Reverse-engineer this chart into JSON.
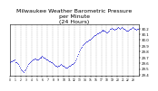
{
  "title": "Milwaukee Weather Barometric Pressure\nper Minute\n(24 Hours)",
  "title_fontsize": 4.5,
  "line_color": "#0000CC",
  "bg_color": "#ffffff",
  "grid_color": "#aaaaaa",
  "ylim": [
    29.38,
    30.28
  ],
  "xlim": [
    0,
    1440
  ],
  "yticks": [
    29.4,
    29.5,
    29.6,
    29.7,
    29.8,
    29.9,
    30.0,
    30.1,
    30.2
  ],
  "xtick_labels": [
    "0",
    "1",
    "2",
    "3",
    "4",
    "5",
    "6",
    "7",
    "8",
    "9",
    "10",
    "11",
    "12",
    "13",
    "14",
    "15",
    "16",
    "17",
    "18",
    "19",
    "20",
    "21",
    "22",
    "23"
  ],
  "xtick_positions": [
    0,
    60,
    120,
    180,
    240,
    300,
    360,
    420,
    480,
    540,
    600,
    660,
    720,
    780,
    840,
    900,
    960,
    1020,
    1080,
    1140,
    1200,
    1260,
    1320,
    1380
  ],
  "vgrid_positions": [
    60,
    120,
    180,
    240,
    300,
    360,
    420,
    480,
    540,
    600,
    660,
    720,
    780,
    840,
    900,
    960,
    1020,
    1080,
    1140,
    1200,
    1260,
    1320,
    1380
  ],
  "data_x": [
    0,
    10,
    20,
    30,
    40,
    50,
    60,
    70,
    80,
    90,
    100,
    110,
    120,
    130,
    140,
    150,
    160,
    170,
    180,
    190,
    200,
    210,
    220,
    230,
    240,
    250,
    260,
    270,
    280,
    290,
    300,
    310,
    320,
    330,
    340,
    350,
    360,
    370,
    380,
    390,
    400,
    410,
    420,
    430,
    440,
    450,
    460,
    470,
    480,
    490,
    500,
    510,
    520,
    530,
    540,
    550,
    560,
    570,
    580,
    590,
    600,
    610,
    620,
    630,
    640,
    650,
    660,
    670,
    680,
    690,
    700,
    710,
    720,
    730,
    740,
    750,
    760,
    770,
    780,
    790,
    800,
    810,
    820,
    830,
    840,
    850,
    860,
    870,
    880,
    890,
    900,
    910,
    920,
    930,
    940,
    950,
    960,
    970,
    980,
    990,
    1000,
    1010,
    1020,
    1030,
    1040,
    1050,
    1060,
    1070,
    1080,
    1090,
    1100,
    1110,
    1120,
    1130,
    1140,
    1150,
    1160,
    1170,
    1180,
    1190,
    1200,
    1210,
    1220,
    1230,
    1240,
    1250,
    1260,
    1270,
    1280,
    1290,
    1300,
    1310,
    1320,
    1330,
    1340,
    1350,
    1360,
    1370,
    1380,
    1390,
    1400,
    1410,
    1420,
    1430
  ],
  "data_y": [
    29.62,
    29.63,
    29.64,
    29.65,
    29.65,
    29.66,
    29.62,
    29.61,
    29.6,
    29.58,
    29.55,
    29.52,
    29.5,
    29.48,
    29.46,
    29.45,
    29.47,
    29.5,
    29.53,
    29.56,
    29.58,
    29.6,
    29.62,
    29.64,
    29.65,
    29.66,
    29.67,
    29.68,
    29.68,
    29.67,
    29.66,
    29.67,
    29.68,
    29.69,
    29.7,
    29.71,
    29.72,
    29.71,
    29.7,
    29.69,
    29.68,
    29.67,
    29.66,
    29.65,
    29.64,
    29.63,
    29.62,
    29.61,
    29.6,
    29.58,
    29.57,
    29.56,
    29.55,
    29.54,
    29.55,
    29.56,
    29.57,
    29.58,
    29.57,
    29.56,
    29.55,
    29.54,
    29.53,
    29.52,
    29.53,
    29.54,
    29.55,
    29.56,
    29.57,
    29.58,
    29.59,
    29.6,
    29.62,
    29.65,
    29.68,
    29.72,
    29.76,
    29.8,
    29.83,
    29.86,
    29.89,
    29.91,
    29.93,
    29.95,
    29.96,
    29.97,
    29.98,
    29.99,
    30.0,
    30.01,
    30.02,
    30.04,
    30.06,
    30.07,
    30.08,
    30.09,
    30.1,
    30.11,
    30.12,
    30.13,
    30.14,
    30.15,
    30.16,
    30.17,
    30.18,
    30.17,
    30.16,
    30.15,
    30.14,
    30.13,
    30.15,
    30.17,
    30.19,
    30.2,
    30.21,
    30.2,
    30.19,
    30.18,
    30.19,
    30.2,
    30.21,
    30.22,
    30.21,
    30.2,
    30.21,
    30.22,
    30.21,
    30.2,
    30.19,
    30.18,
    30.17,
    30.16,
    30.17,
    30.18,
    30.19,
    30.2,
    30.21,
    30.22,
    30.21,
    30.2,
    30.19,
    30.18,
    30.19,
    30.2,
    30.21,
    30.22,
    30.22,
    30.21,
    30.2,
    30.18
  ]
}
